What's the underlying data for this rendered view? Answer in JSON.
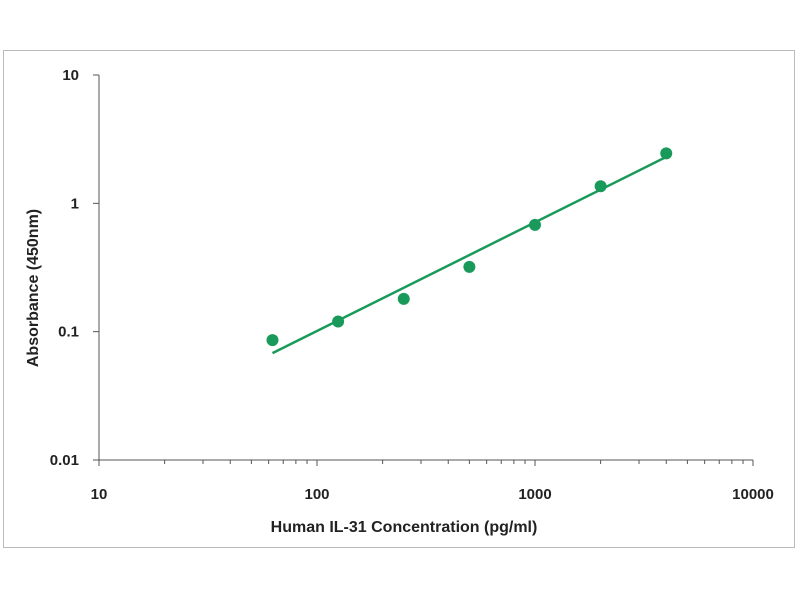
{
  "chart_data": {
    "type": "scatter",
    "title": "",
    "xlabel": "Human IL-31 Concentration (pg/ml)",
    "ylabel": "Absorbance (450nm)",
    "xscale": "log",
    "yscale": "log",
    "xlim": [
      10,
      10000
    ],
    "ylim": [
      0.01,
      10
    ],
    "xticks": [
      "10",
      "100",
      "1000",
      "10000"
    ],
    "yticks": [
      "0.01",
      "0.1",
      "1",
      "10"
    ],
    "grid": false,
    "color": "#1a9a5a",
    "points": {
      "x": [
        62.5,
        125,
        250,
        500,
        1000,
        2000,
        4000
      ],
      "y": [
        0.086,
        0.12,
        0.18,
        0.32,
        0.68,
        1.36,
        2.45
      ]
    },
    "fit_line": {
      "x": [
        62.5,
        4000
      ],
      "y": [
        0.068,
        2.3
      ]
    }
  }
}
